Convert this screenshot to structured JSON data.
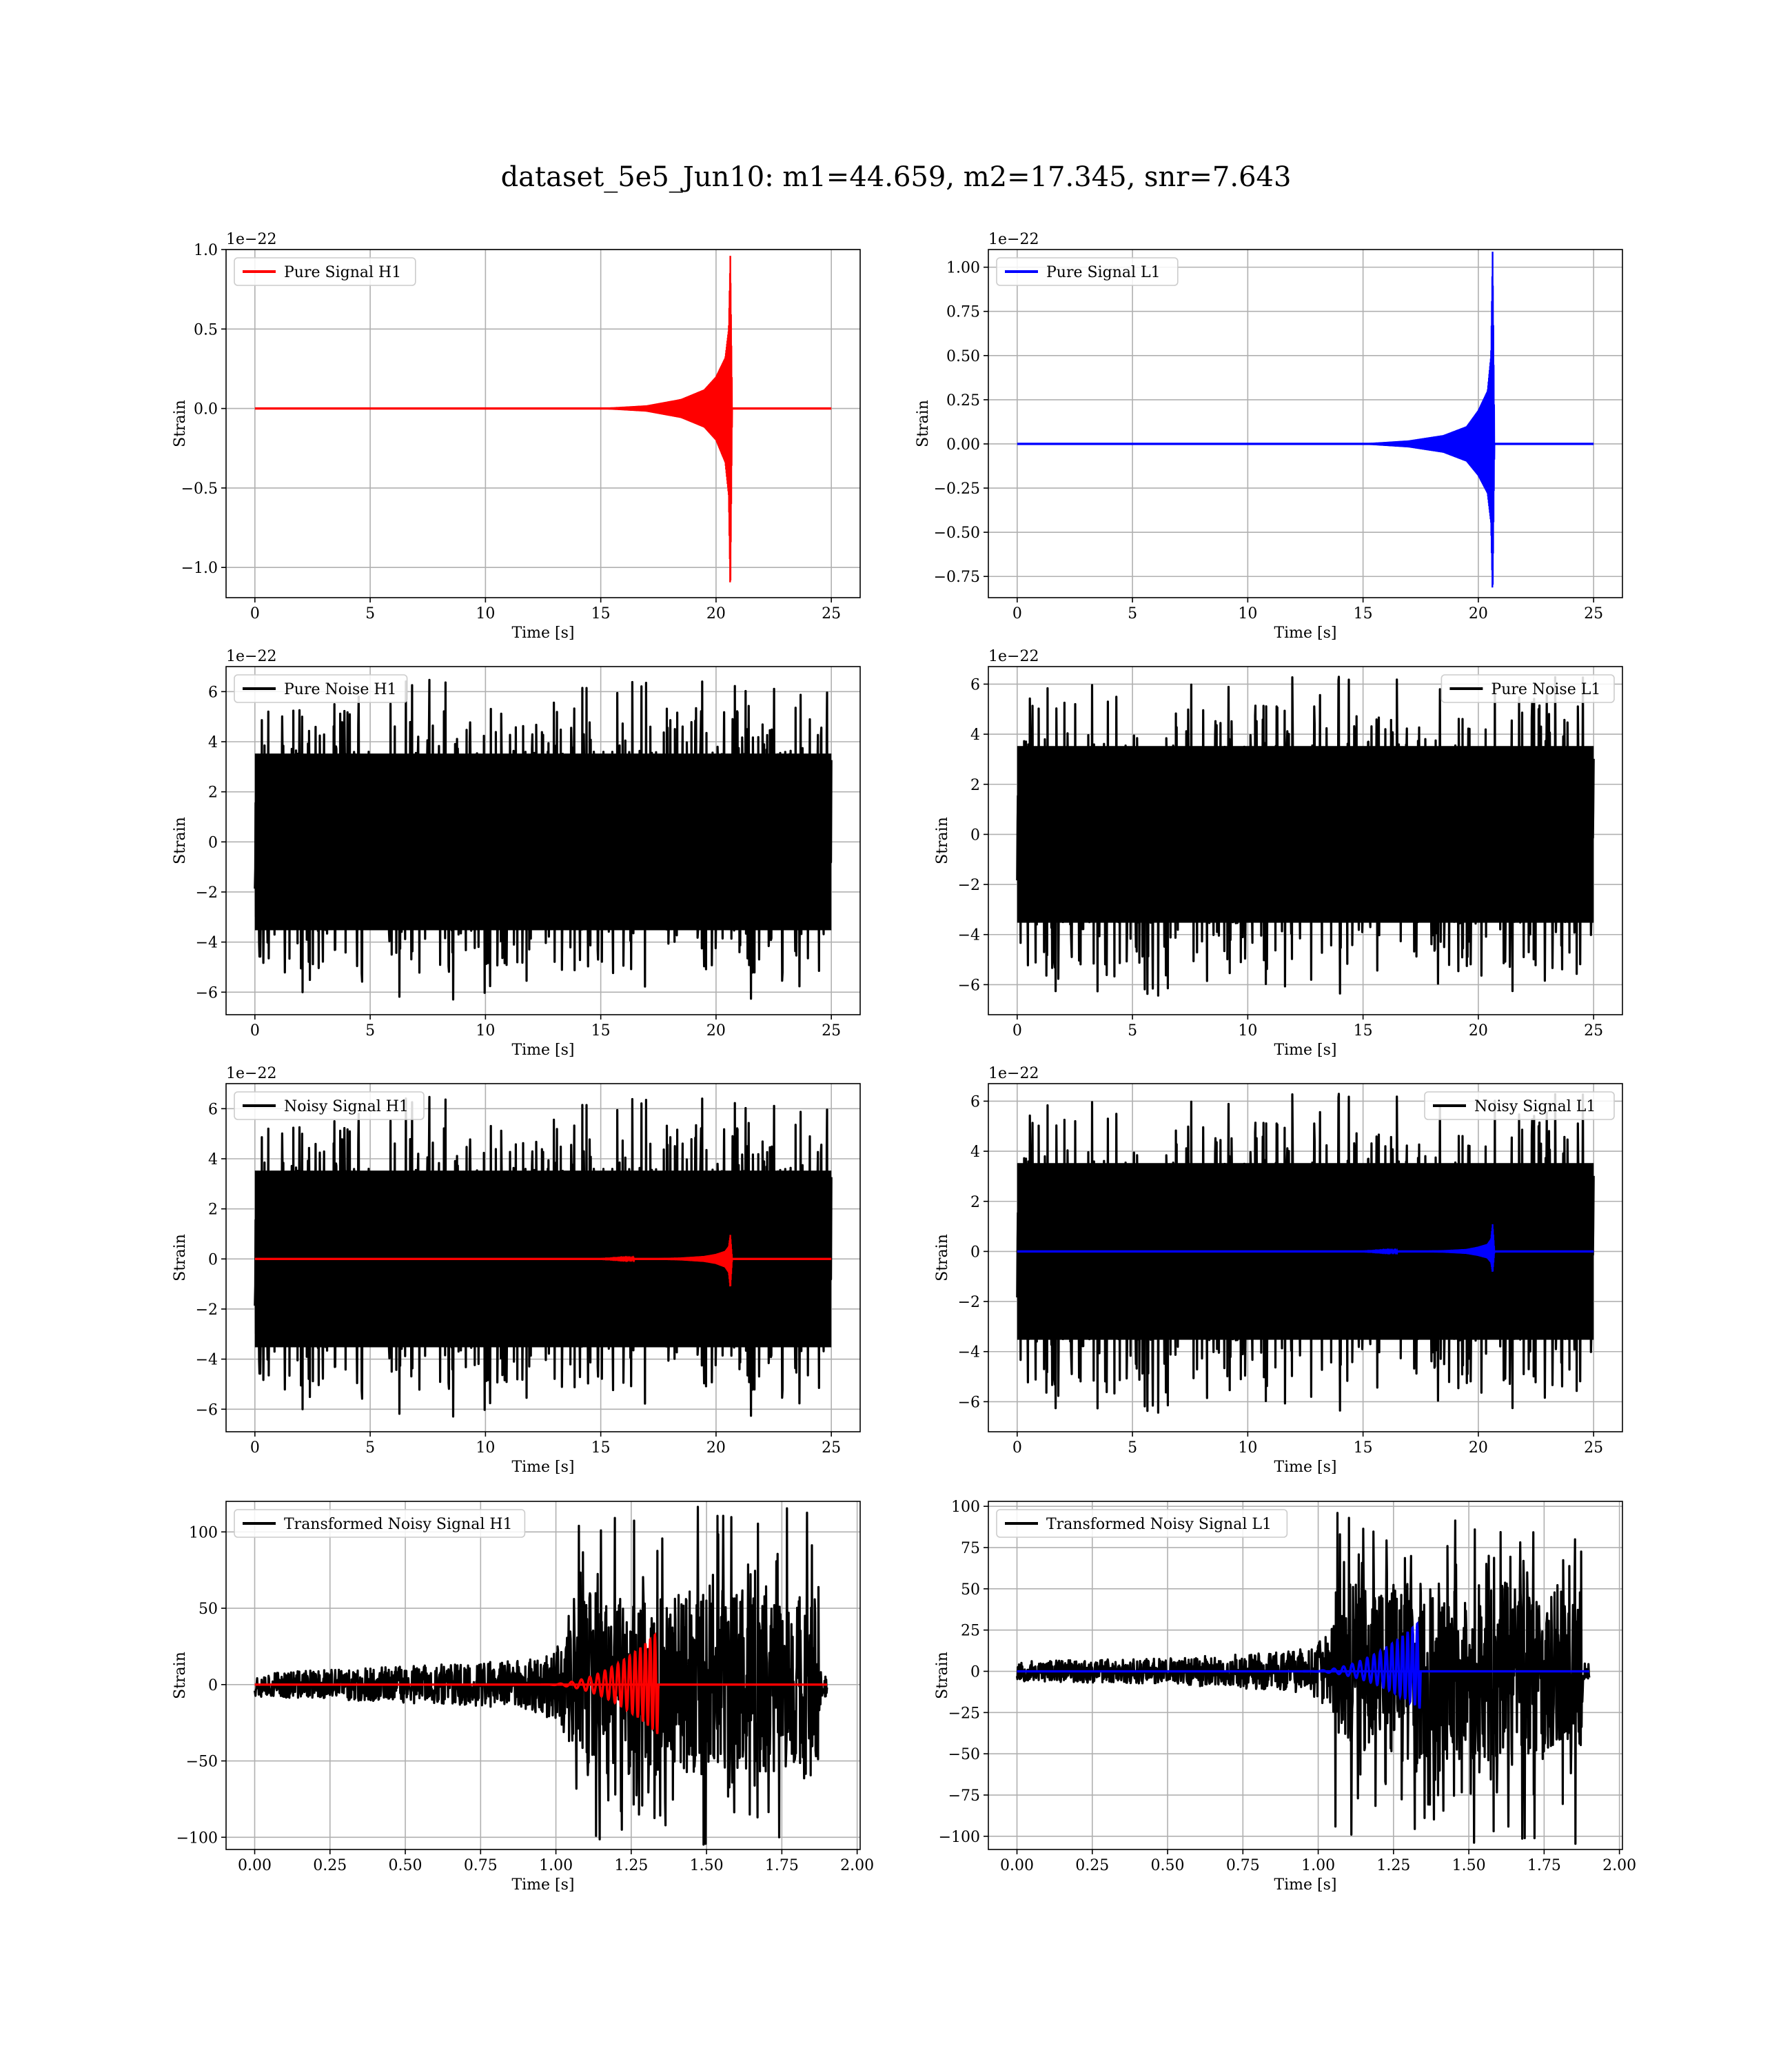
{
  "suptitle": "dataset_5e5_Jun10: m1=44.659, m2=17.345, snr=7.643",
  "chart_data": [
    {
      "id": "pure-signal-h1",
      "type": "line",
      "xlabel": "Time [s]",
      "ylabel": "Strain",
      "offset_text": "1e−22",
      "xlim": [
        -1.25,
        26.25
      ],
      "ylim": [
        -1.19,
        1.0
      ],
      "xticks": [
        0,
        5,
        10,
        15,
        20,
        25
      ],
      "xtick_labels": [
        "0",
        "5",
        "10",
        "15",
        "20",
        "25"
      ],
      "yticks": [
        -1.0,
        -0.5,
        0.0,
        0.5,
        1.0
      ],
      "ytick_labels": [
        "−1.0",
        "−0.5",
        "0.0",
        "0.5",
        "1.0"
      ],
      "grid": true,
      "legend": "upper left",
      "series": [
        {
          "name": "Pure Signal H1",
          "color": "#ff0000",
          "kind": "chirp",
          "x": [
            0,
            15.0,
            17.0,
            18.5,
            19.5,
            20.0,
            20.4,
            20.55,
            20.62,
            20.7,
            25
          ],
          "envelope": [
            0,
            0.003,
            0.02,
            0.06,
            0.12,
            0.2,
            0.32,
            0.5,
            0.97,
            0,
            0
          ],
          "envelope_low": [
            0,
            -0.003,
            -0.02,
            -0.06,
            -0.12,
            -0.2,
            -0.34,
            -0.55,
            -1.18,
            0,
            0
          ]
        }
      ]
    },
    {
      "id": "pure-signal-l1",
      "type": "line",
      "xlabel": "Time [s]",
      "ylabel": "Strain",
      "offset_text": "1e−22",
      "xlim": [
        -1.25,
        26.25
      ],
      "ylim": [
        -0.87,
        1.1
      ],
      "xticks": [
        0,
        5,
        10,
        15,
        20,
        25
      ],
      "xtick_labels": [
        "0",
        "5",
        "10",
        "15",
        "20",
        "25"
      ],
      "yticks": [
        -0.75,
        -0.5,
        -0.25,
        0.0,
        0.25,
        0.5,
        0.75,
        1.0
      ],
      "ytick_labels": [
        "−0.75",
        "−0.50",
        "−0.25",
        "0.00",
        "0.25",
        "0.50",
        "0.75",
        "1.00"
      ],
      "grid": true,
      "legend": "upper left",
      "series": [
        {
          "name": "Pure Signal L1",
          "color": "#0000ff",
          "kind": "chirp",
          "x": [
            0,
            15.0,
            17.0,
            18.5,
            19.5,
            20.0,
            20.4,
            20.55,
            20.62,
            20.7,
            25
          ],
          "envelope": [
            0,
            0.003,
            0.02,
            0.05,
            0.1,
            0.19,
            0.3,
            0.5,
            1.1,
            0,
            0
          ],
          "envelope_low": [
            0,
            -0.003,
            -0.02,
            -0.05,
            -0.1,
            -0.18,
            -0.28,
            -0.45,
            -0.87,
            0,
            0
          ]
        }
      ]
    },
    {
      "id": "pure-noise-h1",
      "type": "line",
      "xlabel": "Time [s]",
      "ylabel": "Strain",
      "offset_text": "1e−22",
      "xlim": [
        -1.25,
        26.25
      ],
      "ylim": [
        -6.9,
        7.0
      ],
      "xticks": [
        0,
        5,
        10,
        15,
        20,
        25
      ],
      "xtick_labels": [
        "0",
        "5",
        "10",
        "15",
        "20",
        "25"
      ],
      "yticks": [
        -6,
        -4,
        -2,
        0,
        2,
        4,
        6
      ],
      "ytick_labels": [
        "−6",
        "−4",
        "−2",
        "0",
        "2",
        "4",
        "6"
      ],
      "grid": true,
      "legend": "upper left",
      "series": [
        {
          "name": "Pure Noise H1",
          "color": "#000000",
          "kind": "noise",
          "x_range": [
            0,
            25
          ],
          "core": 3.6,
          "peak_max": 6.5,
          "peak_min": -6.3,
          "seed": 11
        }
      ]
    },
    {
      "id": "pure-noise-l1",
      "type": "line",
      "xlabel": "Time [s]",
      "ylabel": "Strain",
      "offset_text": "1e−22",
      "xlim": [
        -1.25,
        26.25
      ],
      "ylim": [
        -7.2,
        6.7
      ],
      "xticks": [
        0,
        5,
        10,
        15,
        20,
        25
      ],
      "xtick_labels": [
        "0",
        "5",
        "10",
        "15",
        "20",
        "25"
      ],
      "yticks": [
        -6,
        -4,
        -2,
        0,
        2,
        4,
        6
      ],
      "ytick_labels": [
        "−6",
        "−4",
        "−2",
        "0",
        "2",
        "4",
        "6"
      ],
      "grid": true,
      "legend": "upper right",
      "series": [
        {
          "name": "Pure Noise L1",
          "color": "#000000",
          "kind": "noise",
          "x_range": [
            0,
            25
          ],
          "core": 3.6,
          "peak_max": 6.4,
          "peak_min": -6.5,
          "seed": 23
        }
      ]
    },
    {
      "id": "noisy-signal-h1",
      "type": "line",
      "xlabel": "Time [s]",
      "ylabel": "Strain",
      "offset_text": "1e−22",
      "xlim": [
        -1.25,
        26.25
      ],
      "ylim": [
        -6.9,
        7.0
      ],
      "xticks": [
        0,
        5,
        10,
        15,
        20,
        25
      ],
      "xtick_labels": [
        "0",
        "5",
        "10",
        "15",
        "20",
        "25"
      ],
      "yticks": [
        -6,
        -4,
        -2,
        0,
        2,
        4,
        6
      ],
      "ytick_labels": [
        "−6",
        "−4",
        "−2",
        "0",
        "2",
        "4",
        "6"
      ],
      "grid": true,
      "legend": "upper left",
      "series": [
        {
          "name": "Noisy Signal H1",
          "color": "#000000",
          "kind": "noise",
          "x_range": [
            0,
            25
          ],
          "core": 3.6,
          "peak_max": 6.5,
          "peak_min": -6.3,
          "seed": 11
        },
        {
          "name": "",
          "color": "#ff0000",
          "kind": "chirp",
          "x": [
            0,
            15.0,
            17.0,
            18.5,
            19.5,
            20.0,
            20.4,
            20.55,
            20.62,
            20.7,
            25
          ],
          "envelope": [
            0,
            0.003,
            0.02,
            0.06,
            0.12,
            0.2,
            0.32,
            0.5,
            0.97,
            0,
            0
          ],
          "envelope_low": [
            0,
            -0.003,
            -0.02,
            -0.06,
            -0.12,
            -0.2,
            -0.34,
            -0.55,
            -1.18,
            0,
            0
          ]
        }
      ]
    },
    {
      "id": "noisy-signal-l1",
      "type": "line",
      "xlabel": "Time [s]",
      "ylabel": "Strain",
      "offset_text": "1e−22",
      "xlim": [
        -1.25,
        26.25
      ],
      "ylim": [
        -7.2,
        6.7
      ],
      "xticks": [
        0,
        5,
        10,
        15,
        20,
        25
      ],
      "xtick_labels": [
        "0",
        "5",
        "10",
        "15",
        "20",
        "25"
      ],
      "yticks": [
        -6,
        -4,
        -2,
        0,
        2,
        4,
        6
      ],
      "ytick_labels": [
        "−6",
        "−4",
        "−2",
        "0",
        "2",
        "4",
        "6"
      ],
      "grid": true,
      "legend": "upper right",
      "series": [
        {
          "name": "Noisy Signal L1",
          "color": "#000000",
          "kind": "noise",
          "x_range": [
            0,
            25
          ],
          "core": 3.6,
          "peak_max": 6.4,
          "peak_min": -6.5,
          "seed": 23
        },
        {
          "name": "",
          "color": "#0000ff",
          "kind": "chirp",
          "x": [
            0,
            15.0,
            17.0,
            18.5,
            19.5,
            20.0,
            20.4,
            20.55,
            20.62,
            20.7,
            25
          ],
          "envelope": [
            0,
            0.003,
            0.02,
            0.05,
            0.1,
            0.19,
            0.3,
            0.5,
            1.1,
            0,
            0
          ],
          "envelope_low": [
            0,
            -0.003,
            -0.02,
            -0.05,
            -0.1,
            -0.18,
            -0.28,
            -0.45,
            -0.87,
            0,
            0
          ]
        }
      ]
    },
    {
      "id": "transformed-noisy-signal-h1",
      "type": "line",
      "xlabel": "Time [s]",
      "ylabel": "Strain",
      "offset_text": "",
      "xlim": [
        -0.095,
        2.01
      ],
      "ylim": [
        -108,
        120
      ],
      "xticks": [
        0.0,
        0.25,
        0.5,
        0.75,
        1.0,
        1.25,
        1.5,
        1.75,
        2.0
      ],
      "xtick_labels": [
        "0.00",
        "0.25",
        "0.50",
        "0.75",
        "1.00",
        "1.25",
        "1.50",
        "1.75",
        "2.00"
      ],
      "yticks": [
        -100,
        -50,
        0,
        50,
        100
      ],
      "ytick_labels": [
        "−100",
        "−50",
        "0",
        "50",
        "100"
      ],
      "grid": true,
      "legend": "upper left",
      "series": [
        {
          "name": "Transformed Noisy Signal H1",
          "color": "#000000",
          "kind": "tnoise",
          "x_range": [
            0,
            1.9
          ],
          "env_x": [
            0,
            0.5,
            0.9,
            1.0,
            1.05,
            1.1,
            1.87,
            1.88,
            1.9
          ],
          "env_y": [
            8,
            12,
            16,
            24,
            45,
            60,
            60,
            8,
            8
          ],
          "peak_max": 117,
          "peak_min": -106,
          "seed": 37
        },
        {
          "name": "",
          "color": "#ff0000",
          "kind": "tchirp",
          "x_range": [
            0,
            1.9
          ],
          "t_end": 1.34,
          "t_start": 0.95,
          "amp_max": 35,
          "amp_min": -33
        }
      ]
    },
    {
      "id": "transformed-noisy-signal-l1",
      "type": "line",
      "xlabel": "Time [s]",
      "ylabel": "Strain",
      "offset_text": "",
      "xlim": [
        -0.095,
        2.01
      ],
      "ylim": [
        -108,
        103
      ],
      "xticks": [
        0.0,
        0.25,
        0.5,
        0.75,
        1.0,
        1.25,
        1.5,
        1.75,
        2.0
      ],
      "xtick_labels": [
        "0.00",
        "0.25",
        "0.50",
        "0.75",
        "1.00",
        "1.25",
        "1.50",
        "1.75",
        "2.00"
      ],
      "yticks": [
        -100,
        -75,
        -50,
        -25,
        0,
        25,
        50,
        75,
        100
      ],
      "ytick_labels": [
        "−100",
        "−75",
        "−50",
        "−25",
        "0",
        "25",
        "50",
        "75",
        "100"
      ],
      "grid": true,
      "legend": "upper left",
      "series": [
        {
          "name": "Transformed Noisy Signal L1",
          "color": "#000000",
          "kind": "tnoise",
          "x_range": [
            0,
            1.9
          ],
          "env_x": [
            0,
            0.5,
            0.9,
            1.0,
            1.08,
            1.12,
            1.87,
            1.88,
            1.9
          ],
          "env_y": [
            6,
            8,
            12,
            18,
            35,
            55,
            55,
            5,
            5
          ],
          "peak_max": 97,
          "peak_min": -105,
          "seed": 53
        },
        {
          "name": "",
          "color": "#0000ff",
          "kind": "tchirp",
          "x_range": [
            0,
            1.9
          ],
          "t_end": 1.34,
          "t_start": 0.95,
          "amp_max": 31,
          "amp_min": -23
        }
      ]
    }
  ]
}
